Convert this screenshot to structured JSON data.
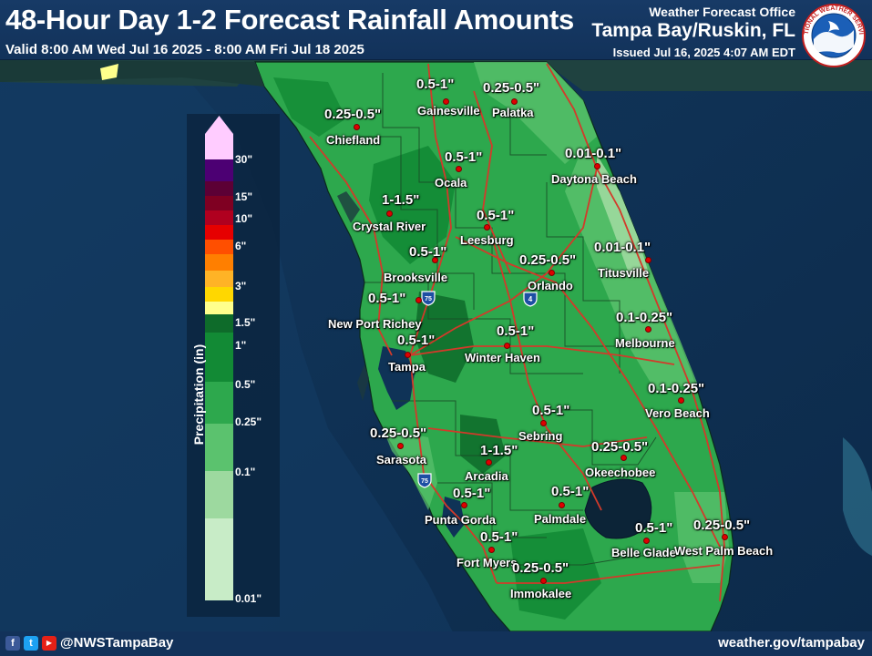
{
  "header": {
    "title": "48-Hour Day 1-2 Forecast Rainfall Amounts",
    "valid": "Valid 8:00 AM Wed Jul 16 2025 - 8:00 AM Fri Jul 18 2025",
    "office_line1": "Weather Forecast Office",
    "office_line2": "Tampa Bay/Ruskin, FL",
    "issued": "Issued Jul 16, 2025 4:07 AM EDT",
    "logo_text": "NATIONAL WEATHER SERVICE",
    "logo_icon": "nws-logo-icon"
  },
  "footer": {
    "handle": "@NWSTampaBay",
    "website": "weather.gov/tampabay",
    "social_icons": [
      "facebook-icon",
      "twitter-icon",
      "youtube-icon"
    ],
    "facebook_glyph": "f",
    "twitter_glyph": "t",
    "youtube_glyph": "▶"
  },
  "legend": {
    "title": "Precipitation (in)",
    "ticks": [
      "30\"",
      "15\"",
      "10\"",
      "6\"",
      "3\"",
      "1.5\"",
      "1\"",
      "0.5\"",
      "0.25\"",
      "0.1\"",
      "0.01\""
    ],
    "colors": {
      "c_30_plus": "#ffccff",
      "c_20_30": "#4c0073",
      "c_15_20": "#5c0035",
      "c_10_15": "#7f0022",
      "c_8_10": "#b0001f",
      "c_6_8": "#e60000",
      "c_4_6": "#ff4f00",
      "c_3_4": "#ff7f00",
      "c_2_3": "#ffb326",
      "c_1_5_2": "#ffd700",
      "c_1_1_5": "#ffff8c",
      "c_0_75_1": "#0e6b2a",
      "c_0_5_0_75": "#128a35",
      "c_0_25_0_5": "#2da84d",
      "c_0_1_0_25": "#5bc26e",
      "c_0_01_0_1": "#9dd99f",
      "c_trace": "#c8ecc7"
    }
  },
  "map": {
    "water_color": "#0f3357",
    "land_background": "#1c3a3f",
    "road_color": "#d23a2a",
    "county_line_color": "#2b4a2f",
    "interstate_labels": [
      "75",
      "4",
      "75"
    ],
    "locations": [
      {
        "name": "Gainesville",
        "amount": "0.5-1\""
      },
      {
        "name": "Palatka",
        "amount": "0.25-0.5\""
      },
      {
        "name": "Chiefland",
        "amount": "0.25-0.5\""
      },
      {
        "name": "Ocala",
        "amount": "0.5-1\""
      },
      {
        "name": "Daytona Beach",
        "amount": "0.01-0.1\""
      },
      {
        "name": "Crystal River",
        "amount": "1-1.5\""
      },
      {
        "name": "Leesburg",
        "amount": "0.5-1\""
      },
      {
        "name": "Brooksville",
        "amount": "0.5-1\""
      },
      {
        "name": "Titusville",
        "amount": "0.01-0.1\""
      },
      {
        "name": "Orlando",
        "amount": "0.25-0.5\""
      },
      {
        "name": "New Port Richey",
        "amount": "0.5-1\""
      },
      {
        "name": "Melbourne",
        "amount": "0.1-0.25\""
      },
      {
        "name": "Tampa",
        "amount": "0.5-1\""
      },
      {
        "name": "Winter Haven",
        "amount": "0.5-1\""
      },
      {
        "name": "Vero Beach",
        "amount": "0.1-0.25\""
      },
      {
        "name": "Sebring",
        "amount": "0.5-1\""
      },
      {
        "name": "Sarasota",
        "amount": "0.25-0.5\""
      },
      {
        "name": "Arcadia",
        "amount": "1-1.5\""
      },
      {
        "name": "Okeechobee",
        "amount": "0.25-0.5\""
      },
      {
        "name": "Punta Gorda",
        "amount": "0.5-1\""
      },
      {
        "name": "Palmdale",
        "amount": "0.5-1\""
      },
      {
        "name": "Fort Myers",
        "amount": "0.5-1\""
      },
      {
        "name": "Belle Glade",
        "amount": "0.5-1\""
      },
      {
        "name": "West Palm Beach",
        "amount": "0.25-0.5\""
      },
      {
        "name": "Immokalee",
        "amount": "0.25-0.5\""
      }
    ]
  }
}
